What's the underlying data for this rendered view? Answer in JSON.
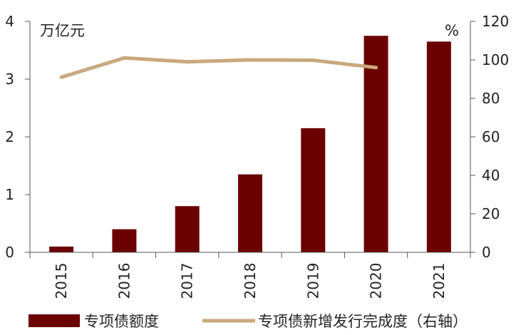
{
  "chart_data": {
    "type": "bar",
    "categories": [
      "2015",
      "2016",
      "2017",
      "2018",
      "2019",
      "2020",
      "2021"
    ],
    "series": [
      {
        "name": "专项债额度",
        "type": "bar",
        "axis": "left",
        "color": "#6B0000",
        "values": [
          0.1,
          0.4,
          0.8,
          1.35,
          2.15,
          3.75,
          3.65
        ]
      },
      {
        "name": "专项债新增发行完成度（右轴）",
        "type": "line",
        "axis": "right",
        "color": "#C8A97E",
        "values": [
          91,
          101,
          99,
          100,
          99.8,
          96,
          null
        ]
      }
    ],
    "y_left": {
      "unit": "万亿元",
      "min": 0,
      "max": 4,
      "ticks": [
        0,
        1,
        2,
        3,
        4
      ]
    },
    "y_right": {
      "unit": "%",
      "min": 0,
      "max": 120,
      "ticks": [
        0,
        20,
        40,
        60,
        80,
        100,
        120
      ]
    },
    "grid": false,
    "legend_position": "bottom"
  }
}
